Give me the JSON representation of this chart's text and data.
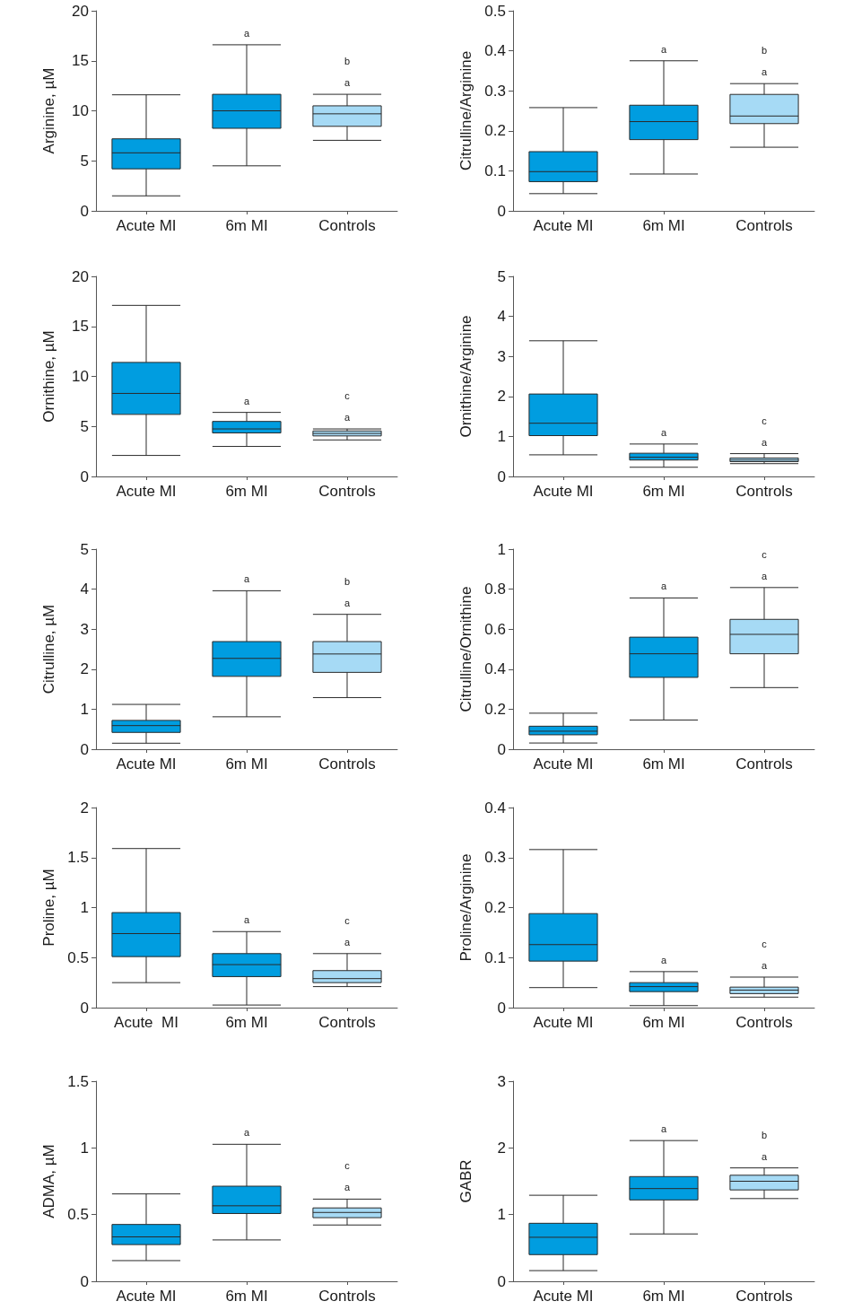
{
  "chart_data": [
    {
      "type": "box",
      "ylabel": "Arginine, µM",
      "categories": [
        "Acute MI",
        "6m MI",
        "Controls"
      ],
      "colors": [
        "#009de0",
        "#009de0",
        "#a6daf5"
      ],
      "ylim": [
        0,
        20
      ],
      "yticks": [
        0,
        5,
        10,
        15,
        20
      ],
      "boxes": [
        {
          "low": 1.5,
          "q1": 4.2,
          "median": 5.8,
          "q3": 7.2,
          "high": 11.6
        },
        {
          "low": 4.5,
          "q1": 8.25,
          "median": 10,
          "q3": 11.65,
          "high": 16.6
        },
        {
          "low": 7.05,
          "q1": 8.45,
          "median": 9.7,
          "q3": 10.5,
          "high": 11.65
        }
      ],
      "annotations": [
        "a",
        "a",
        "b"
      ]
    },
    {
      "type": "box",
      "ylabel": "Citrulline/Arginine",
      "categories": [
        "Acute MI",
        "6m MI",
        "Controls"
      ],
      "colors": [
        "#009de0",
        "#009de0",
        "#a6daf5"
      ],
      "ylim": [
        0,
        0.5
      ],
      "yticks": [
        0,
        0.1,
        0.2,
        0.3,
        0.4,
        0.5
      ],
      "boxes": [
        {
          "low": 0.043,
          "q1": 0.073,
          "median": 0.098,
          "q3": 0.148,
          "high": 0.258
        },
        {
          "low": 0.092,
          "q1": 0.178,
          "median": 0.223,
          "q3": 0.264,
          "high": 0.375
        },
        {
          "low": 0.159,
          "q1": 0.218,
          "median": 0.237,
          "q3": 0.291,
          "high": 0.318
        }
      ],
      "annotations": [
        "a",
        "a",
        "b"
      ]
    },
    {
      "type": "box",
      "ylabel": "Ornithine, µM",
      "categories": [
        "Acute MI",
        "6m MI",
        "Controls"
      ],
      "colors": [
        "#009de0",
        "#009de0",
        "#a6daf5"
      ],
      "ylim": [
        0,
        20
      ],
      "yticks": [
        0,
        5,
        10,
        15,
        20
      ],
      "boxes": [
        {
          "low": 2.1,
          "q1": 6.2,
          "median": 8.3,
          "q3": 11.4,
          "high": 17.1
        },
        {
          "low": 3,
          "q1": 4.35,
          "median": 4.75,
          "q3": 5.5,
          "high": 6.4
        },
        {
          "low": 3.65,
          "q1": 4.05,
          "median": 4.3,
          "q3": 4.55,
          "high": 4.75
        }
      ],
      "annotations": [
        "a",
        "a",
        "c"
      ]
    },
    {
      "type": "box",
      "ylabel": "Ornithine/Arginine",
      "categories": [
        "Acute MI",
        "6m MI",
        "Controls"
      ],
      "colors": [
        "#009de0",
        "#009de0",
        "#a6daf5"
      ],
      "ylim": [
        0,
        5
      ],
      "yticks": [
        0,
        1,
        2,
        3,
        4,
        5
      ],
      "boxes": [
        {
          "low": 0.54,
          "q1": 1.02,
          "median": 1.33,
          "q3": 2.06,
          "high": 3.39
        },
        {
          "low": 0.23,
          "q1": 0.41,
          "median": 0.48,
          "q3": 0.58,
          "high": 0.81
        },
        {
          "low": 0.32,
          "q1": 0.37,
          "median": 0.41,
          "q3": 0.46,
          "high": 0.57
        }
      ],
      "annotations": [
        "a",
        "a",
        "c"
      ]
    },
    {
      "type": "box",
      "ylabel": "Citrulline, µM",
      "categories": [
        "Acute MI",
        "6m MI",
        "Controls"
      ],
      "colors": [
        "#009de0",
        "#009de0",
        "#a6daf5"
      ],
      "ylim": [
        0,
        5
      ],
      "yticks": [
        0,
        1,
        2,
        3,
        4,
        5
      ],
      "boxes": [
        {
          "low": 0.15,
          "q1": 0.42,
          "median": 0.59,
          "q3": 0.72,
          "high": 1.12
        },
        {
          "low": 0.81,
          "q1": 1.82,
          "median": 2.27,
          "q3": 2.69,
          "high": 3.96
        },
        {
          "low": 1.29,
          "q1": 1.92,
          "median": 2.38,
          "q3": 2.69,
          "high": 3.37
        }
      ],
      "annotations": [
        "a",
        "a",
        "b"
      ]
    },
    {
      "type": "box",
      "ylabel": "Citrulline/Ornithine",
      "categories": [
        "Acute MI",
        "6m MI",
        "Controls"
      ],
      "colors": [
        "#009de0",
        "#009de0",
        "#a6daf5"
      ],
      "ylim": [
        0,
        1
      ],
      "yticks": [
        0,
        0.2,
        0.4,
        0.6,
        0.8,
        1
      ],
      "boxes": [
        {
          "low": 0.031,
          "q1": 0.072,
          "median": 0.09,
          "q3": 0.115,
          "high": 0.18
        },
        {
          "low": 0.146,
          "q1": 0.359,
          "median": 0.477,
          "q3": 0.56,
          "high": 0.756
        },
        {
          "low": 0.308,
          "q1": 0.477,
          "median": 0.574,
          "q3": 0.649,
          "high": 0.808
        }
      ],
      "annotations": [
        "a",
        "a",
        "c"
      ]
    },
    {
      "type": "box",
      "ylabel": "Proline, µM",
      "categories": [
        "Acute  MI",
        "6m MI",
        "Controls"
      ],
      "colors": [
        "#009de0",
        "#009de0",
        "#a6daf5"
      ],
      "ylim": [
        0,
        2
      ],
      "yticks": [
        0,
        0.5,
        1,
        1.5,
        2
      ],
      "boxes": [
        {
          "low": 0.25,
          "q1": 0.51,
          "median": 0.74,
          "q3": 0.95,
          "high": 1.59
        },
        {
          "low": 0.026,
          "q1": 0.31,
          "median": 0.43,
          "q3": 0.54,
          "high": 0.76
        },
        {
          "low": 0.21,
          "q1": 0.25,
          "median": 0.29,
          "q3": 0.37,
          "high": 0.54
        }
      ],
      "annotations": [
        "a",
        "a",
        "c"
      ]
    },
    {
      "type": "box",
      "ylabel": "Proline/Arginine",
      "categories": [
        "Acute MI",
        "6m MI",
        "Controls"
      ],
      "colors": [
        "#009de0",
        "#009de0",
        "#a6daf5"
      ],
      "ylim": [
        0,
        0.4
      ],
      "yticks": [
        0,
        0.1,
        0.2,
        0.3,
        0.4
      ],
      "boxes": [
        {
          "low": 0.04,
          "q1": 0.093,
          "median": 0.126,
          "q3": 0.188,
          "high": 0.316
        },
        {
          "low": 0.004,
          "q1": 0.032,
          "median": 0.042,
          "q3": 0.05,
          "high": 0.072
        },
        {
          "low": 0.021,
          "q1": 0.028,
          "median": 0.035,
          "q3": 0.041,
          "high": 0.061
        }
      ],
      "annotations": [
        "a",
        "a",
        "c"
      ]
    },
    {
      "type": "box",
      "ylabel": "ADMA, µM",
      "categories": [
        "Acute MI",
        "6m MI",
        "Controls"
      ],
      "colors": [
        "#009de0",
        "#009de0",
        "#a6daf5"
      ],
      "ylim": [
        0,
        1.5
      ],
      "yticks": [
        0,
        0.5,
        1,
        1.5
      ],
      "boxes": [
        {
          "low": 0.155,
          "q1": 0.275,
          "median": 0.333,
          "q3": 0.426,
          "high": 0.655
        },
        {
          "low": 0.31,
          "q1": 0.508,
          "median": 0.566,
          "q3": 0.713,
          "high": 1.027
        },
        {
          "low": 0.422,
          "q1": 0.477,
          "median": 0.516,
          "q3": 0.55,
          "high": 0.616
        }
      ],
      "annotations": [
        "a",
        "a",
        "c"
      ]
    },
    {
      "type": "box",
      "ylabel": "GABR",
      "categories": [
        "Acute MI",
        "6m MI",
        "Controls"
      ],
      "colors": [
        "#009de0",
        "#009de0",
        "#a6daf5"
      ],
      "ylim": [
        0,
        3
      ],
      "yticks": [
        0,
        1,
        2,
        3
      ],
      "boxes": [
        {
          "low": 0.16,
          "q1": 0.4,
          "median": 0.66,
          "q3": 0.87,
          "high": 1.29
        },
        {
          "low": 0.71,
          "q1": 1.22,
          "median": 1.39,
          "q3": 1.57,
          "high": 2.11
        },
        {
          "low": 1.24,
          "q1": 1.37,
          "median": 1.5,
          "q3": 1.59,
          "high": 1.7
        }
      ],
      "annotations": [
        "a",
        "a",
        "b"
      ]
    }
  ]
}
